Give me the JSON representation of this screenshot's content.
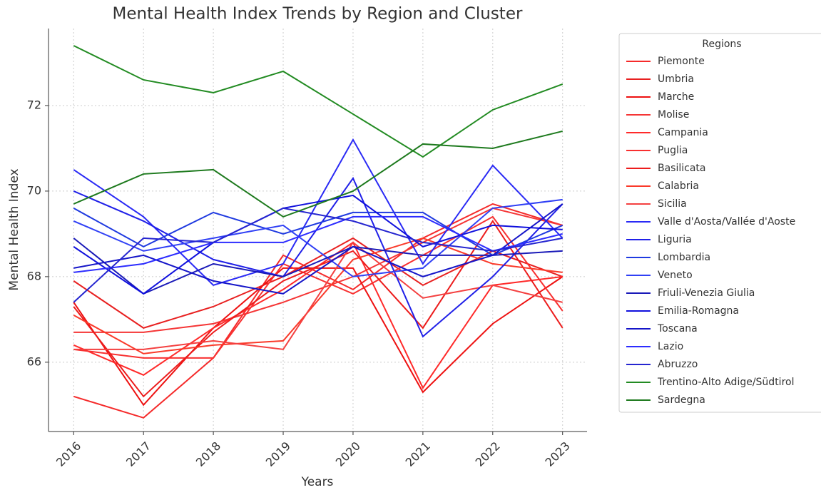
{
  "chart_data": {
    "type": "line",
    "title": "Mental Health Index Trends by Region and Cluster",
    "x_label": "Years",
    "y_label": "Mental Health Index",
    "x": [
      2016,
      2017,
      2018,
      2019,
      2020,
      2021,
      2022,
      2023
    ],
    "xlim": [
      2015.64,
      2023.35
    ],
    "xticks": [
      2016,
      2017,
      2018,
      2019,
      2020,
      2021,
      2022,
      2023
    ],
    "ylim": [
      64.38,
      73.8
    ],
    "yticks": [
      66,
      68,
      70,
      72
    ],
    "grid": true,
    "legend_title": "Regions",
    "legend_position": "outside-right",
    "series": [
      {
        "name": "Piemonte",
        "color": "#f52a2a",
        "values": [
          65.2,
          64.7,
          66.1,
          68.5,
          67.7,
          68.9,
          69.7,
          69.2
        ]
      },
      {
        "name": "Umbria",
        "color": "#e82020",
        "values": [
          67.9,
          66.8,
          67.3,
          68.0,
          68.9,
          67.8,
          68.6,
          68.0
        ]
      },
      {
        "name": "Marche",
        "color": "#ee1111",
        "values": [
          67.4,
          65.0,
          66.8,
          68.2,
          68.2,
          65.3,
          66.9,
          68.0
        ]
      },
      {
        "name": "Molise",
        "color": "#f53535",
        "values": [
          66.7,
          66.7,
          66.9,
          67.4,
          68.0,
          68.8,
          69.6,
          69.2
        ]
      },
      {
        "name": "Campania",
        "color": "#ff2a2a",
        "values": [
          66.4,
          65.7,
          66.8,
          67.7,
          68.8,
          65.4,
          67.8,
          68.0
        ]
      },
      {
        "name": "Puglia",
        "color": "#f83030",
        "values": [
          66.3,
          66.1,
          66.1,
          68.3,
          67.6,
          68.5,
          69.4,
          67.2
        ]
      },
      {
        "name": "Basilicata",
        "color": "#ec1c1c",
        "values": [
          67.3,
          65.2,
          66.7,
          67.9,
          68.6,
          66.8,
          69.3,
          66.8
        ]
      },
      {
        "name": "Calabria",
        "color": "#fa3a2a",
        "values": [
          67.1,
          66.2,
          66.4,
          66.5,
          68.4,
          68.9,
          68.3,
          68.1
        ]
      },
      {
        "name": "Sicilia",
        "color": "#f44040",
        "values": [
          66.3,
          66.3,
          66.5,
          66.3,
          68.8,
          67.5,
          67.8,
          67.4
        ]
      },
      {
        "name": "Valle d'Aosta/Vallée d'Aoste",
        "color": "#2a2af5",
        "values": [
          70.5,
          69.4,
          67.8,
          68.3,
          71.2,
          68.3,
          70.6,
          68.9
        ]
      },
      {
        "name": "Liguria",
        "color": "#2020e8",
        "values": [
          70.0,
          69.3,
          68.4,
          68.0,
          70.3,
          66.6,
          68.0,
          69.7
        ]
      },
      {
        "name": "Lombardia",
        "color": "#1f3ae0",
        "values": [
          69.6,
          68.7,
          69.5,
          69.0,
          69.5,
          69.5,
          68.5,
          69.2
        ]
      },
      {
        "name": "Veneto",
        "color": "#3040f5",
        "values": [
          69.3,
          68.6,
          68.9,
          69.2,
          68.0,
          68.2,
          69.6,
          69.8
        ]
      },
      {
        "name": "Friuli-Venezia Giulia",
        "color": "#1a1ab8",
        "values": [
          68.9,
          67.6,
          68.3,
          68.0,
          68.7,
          68.5,
          68.5,
          68.6
        ]
      },
      {
        "name": "Emilia-Romagna",
        "color": "#1010dd",
        "values": [
          68.7,
          67.6,
          68.8,
          69.6,
          69.9,
          68.7,
          69.2,
          69.1
        ]
      },
      {
        "name": "Toscana",
        "color": "#1515c8",
        "values": [
          68.2,
          68.5,
          67.9,
          67.6,
          68.7,
          68.0,
          68.5,
          69.7
        ]
      },
      {
        "name": "Lazio",
        "color": "#2c2cff",
        "values": [
          68.1,
          68.3,
          68.8,
          68.8,
          69.4,
          69.4,
          68.6,
          69.0
        ]
      },
      {
        "name": "Abruzzo",
        "color": "#2525d0",
        "values": [
          67.4,
          68.9,
          68.8,
          69.6,
          69.3,
          68.8,
          68.6,
          68.9
        ]
      },
      {
        "name": "Trentino-Alto Adige/Südtirol",
        "color": "#228b22",
        "values": [
          73.4,
          72.6,
          72.3,
          72.8,
          71.8,
          70.8,
          71.9,
          72.5
        ]
      },
      {
        "name": "Sardegna",
        "color": "#1e7a1e",
        "values": [
          69.7,
          70.4,
          70.5,
          69.4,
          70.0,
          71.1,
          71.0,
          71.4
        ]
      }
    ]
  }
}
